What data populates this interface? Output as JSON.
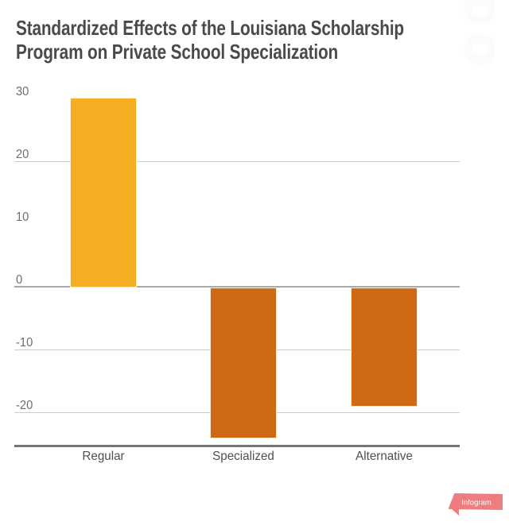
{
  "title": {
    "full": "Standardized Effects of the Louisiana Scholarship Program on Private School Specialization",
    "line1": "Standardized Effects of the Louisiana Scholarship",
    "line2": "Program on Private School Specialization"
  },
  "chart_data": {
    "type": "bar",
    "title": "Standardized Effects of the Louisiana Scholarship Program on Private School Specialization",
    "categories": [
      "Regular",
      "Specialized",
      "Alternative"
    ],
    "values": [
      30,
      -24,
      -19
    ],
    "xlabel": "",
    "ylabel": "",
    "ylim": [
      -25,
      31
    ],
    "yticks": [
      30,
      20,
      10,
      0,
      -10,
      -20
    ],
    "gridlines_at": [
      20,
      0,
      -10,
      -20
    ],
    "grid": "partial-horizontal",
    "legend": "none",
    "bar_colors": [
      "#F4AE24",
      "#CF6A14",
      "#CF6A14"
    ],
    "positive_color": "#F4AE24",
    "negative_color": "#CF6A14"
  },
  "icons": {
    "share_icon": "faint-circle-button",
    "download_icon": "faint-circle-button"
  },
  "branding": {
    "logo_label": "Infogram",
    "logo_color": "#ED7D7E"
  }
}
